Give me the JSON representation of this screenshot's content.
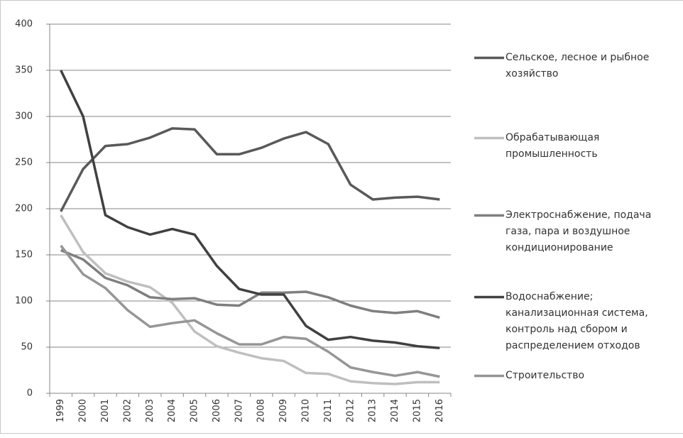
{
  "chart_data": {
    "type": "line",
    "categories": [
      "1999",
      "2000",
      "2001",
      "2002",
      "2003",
      "2004",
      "2005",
      "2006",
      "2007",
      "2008",
      "2009",
      "2010",
      "2011",
      "2012",
      "2013",
      "2014",
      "2015",
      "2016"
    ],
    "series": [
      {
        "name": "Сельское, лесное и рыбное хозяйство",
        "color": "#595959",
        "values": [
          197,
          243,
          268,
          270,
          277,
          287,
          286,
          259,
          259,
          266,
          276,
          283,
          270,
          226,
          210,
          212,
          213,
          210
        ]
      },
      {
        "name": "Обрабатывающая промышленность",
        "color": "#bfbfbf",
        "values": [
          193,
          153,
          130,
          121,
          115,
          98,
          67,
          51,
          44,
          38,
          35,
          22,
          21,
          13,
          11,
          10,
          12,
          12
        ]
      },
      {
        "name": "Электроснабжение, подача газа, пара и воздушное кондиционирование",
        "color": "#7f7f7f",
        "values": [
          155,
          145,
          125,
          117,
          104,
          102,
          103,
          96,
          95,
          109,
          109,
          110,
          104,
          95,
          89,
          87,
          89,
          82
        ]
      },
      {
        "name": "Водоснабжение; канализационная система, контроль над сбором и распределением отходов",
        "color": "#404040",
        "values": [
          350,
          300,
          193,
          180,
          172,
          178,
          172,
          138,
          113,
          107,
          107,
          73,
          58,
          61,
          57,
          55,
          51,
          49
        ]
      },
      {
        "name": "Строительство",
        "color": "#969696",
        "values": [
          160,
          129,
          114,
          90,
          72,
          76,
          79,
          65,
          53,
          53,
          61,
          59,
          45,
          28,
          23,
          19,
          23,
          18
        ]
      }
    ],
    "ylim": [
      0,
      400
    ],
    "yticks": [
      0,
      50,
      100,
      150,
      200,
      250,
      300,
      350,
      400
    ],
    "grid": true,
    "legend": "right"
  }
}
